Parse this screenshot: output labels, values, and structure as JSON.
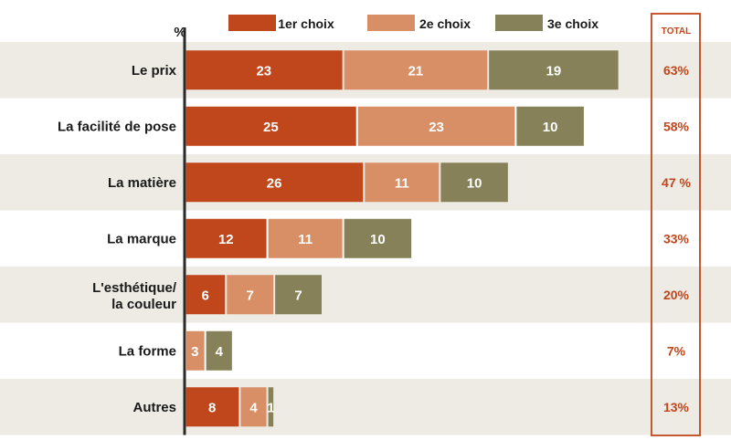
{
  "chart_data": {
    "type": "bar",
    "orientation": "horizontal",
    "stacked": true,
    "unit_label": "%",
    "categories": [
      "Le prix",
      "La facilité de pose",
      "La matière",
      "La marque",
      "L'esthétique/ la couleur",
      "La forme",
      "Autres"
    ],
    "category_lines": [
      [
        "Le prix"
      ],
      [
        "La facilité de pose"
      ],
      [
        "La matière"
      ],
      [
        "La marque"
      ],
      [
        "L'esthétique/",
        "la couleur"
      ],
      [
        "La forme"
      ],
      [
        "Autres"
      ]
    ],
    "series": [
      {
        "name": "1er choix",
        "color": "#c0461c",
        "values": [
          23,
          25,
          26,
          12,
          6,
          0,
          8
        ]
      },
      {
        "name": "2e choix",
        "color": "#d98f66",
        "values": [
          21,
          23,
          11,
          11,
          7,
          3,
          4
        ]
      },
      {
        "name": "3e choix",
        "color": "#868159",
        "values": [
          19,
          10,
          10,
          10,
          7,
          4,
          1
        ]
      }
    ],
    "value_labels": [
      [
        "23",
        "21",
        "19"
      ],
      [
        "25",
        "23",
        "10"
      ],
      [
        "26",
        "11",
        "10"
      ],
      [
        "12",
        "11",
        "10"
      ],
      [
        "6",
        "7",
        "7"
      ],
      [
        "",
        "3",
        "4"
      ],
      [
        "8",
        "4",
        "1"
      ]
    ],
    "total_header": "TOTAL",
    "totals": [
      "63%",
      "58%",
      "47 %",
      "33%",
      "20%",
      "7%",
      "13%"
    ],
    "xlim": [
      0,
      68
    ],
    "legend_position": "top",
    "band_color": "#eeebe4",
    "accent_color": "#c0461c"
  }
}
